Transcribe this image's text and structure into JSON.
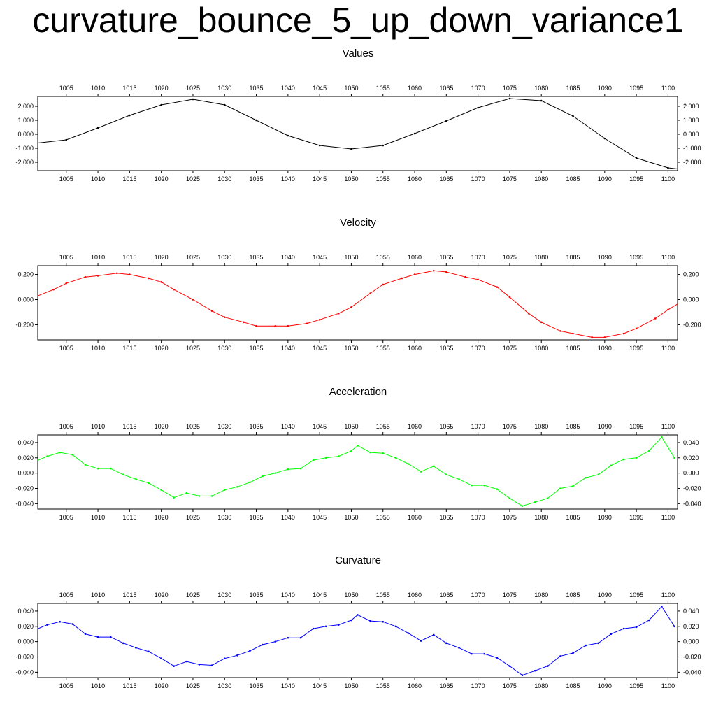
{
  "title": "curvature_bounce_5_up_down_variance1",
  "chart_data": [
    {
      "type": "line",
      "title": "Values",
      "color": "#000000",
      "x_range": [
        1000.5,
        1101.5
      ],
      "ylim": [
        -2.6,
        2.7
      ],
      "x_ticks": [
        1005,
        1010,
        1015,
        1020,
        1025,
        1030,
        1035,
        1040,
        1045,
        1050,
        1055,
        1060,
        1065,
        1070,
        1075,
        1080,
        1085,
        1090,
        1095,
        1100
      ],
      "y_ticks": [
        {
          "v": 2.0,
          "label": "2.000"
        },
        {
          "v": 1.0,
          "label": "1.000"
        },
        {
          "v": 0.0,
          "label": "0.000"
        },
        {
          "v": -1.0,
          "label": "-1.000"
        },
        {
          "v": -2.0,
          "label": "-2.000"
        }
      ],
      "x": [
        1000,
        1005,
        1010,
        1015,
        1020,
        1025,
        1030,
        1035,
        1040,
        1045,
        1050,
        1055,
        1060,
        1065,
        1070,
        1075,
        1080,
        1085,
        1090,
        1095,
        1100,
        1102
      ],
      "values": [
        -0.65,
        -0.4,
        0.45,
        1.35,
        2.1,
        2.5,
        2.1,
        1.0,
        -0.1,
        -0.8,
        -1.05,
        -0.8,
        0.05,
        0.95,
        1.9,
        2.55,
        2.4,
        1.3,
        -0.3,
        -1.7,
        -2.4,
        -2.5
      ]
    },
    {
      "type": "line",
      "title": "Velocity",
      "color": "#ff0000",
      "x_range": [
        1000.5,
        1101.5
      ],
      "ylim": [
        -0.32,
        0.27
      ],
      "x_ticks": [
        1005,
        1010,
        1015,
        1020,
        1025,
        1030,
        1035,
        1040,
        1045,
        1050,
        1055,
        1060,
        1065,
        1070,
        1075,
        1080,
        1085,
        1090,
        1095,
        1100
      ],
      "y_ticks": [
        {
          "v": 0.2,
          "label": "0.200"
        },
        {
          "v": 0.0,
          "label": "0.000"
        },
        {
          "v": -0.2,
          "label": "-0.200"
        }
      ],
      "x": [
        1000,
        1003,
        1005,
        1008,
        1010,
        1013,
        1015,
        1018,
        1020,
        1022,
        1025,
        1028,
        1030,
        1033,
        1035,
        1038,
        1040,
        1043,
        1045,
        1048,
        1050,
        1053,
        1055,
        1058,
        1060,
        1063,
        1065,
        1068,
        1070,
        1073,
        1075,
        1078,
        1080,
        1083,
        1085,
        1088,
        1090,
        1093,
        1095,
        1098,
        1100,
        1102
      ],
      "values": [
        0.02,
        0.08,
        0.13,
        0.18,
        0.19,
        0.21,
        0.2,
        0.17,
        0.14,
        0.08,
        0.0,
        -0.09,
        -0.14,
        -0.18,
        -0.21,
        -0.21,
        -0.21,
        -0.19,
        -0.16,
        -0.11,
        -0.06,
        0.05,
        0.12,
        0.17,
        0.2,
        0.23,
        0.22,
        0.18,
        0.16,
        0.1,
        0.02,
        -0.11,
        -0.18,
        -0.25,
        -0.27,
        -0.3,
        -0.3,
        -0.27,
        -0.23,
        -0.15,
        -0.08,
        -0.02
      ]
    },
    {
      "type": "line",
      "title": "Acceleration",
      "color": "#00ff00",
      "x_range": [
        1000.5,
        1101.5
      ],
      "ylim": [
        -0.047,
        0.05
      ],
      "x_ticks": [
        1005,
        1010,
        1015,
        1020,
        1025,
        1030,
        1035,
        1040,
        1045,
        1050,
        1055,
        1060,
        1065,
        1070,
        1075,
        1080,
        1085,
        1090,
        1095,
        1100
      ],
      "y_ticks": [
        {
          "v": 0.04,
          "label": "0.040"
        },
        {
          "v": 0.02,
          "label": "0.020"
        },
        {
          "v": 0.0,
          "label": "0.000"
        },
        {
          "v": -0.02,
          "label": "-0.020"
        },
        {
          "v": -0.04,
          "label": "-0.040"
        }
      ],
      "x": [
        1000,
        1002,
        1004,
        1006,
        1008,
        1010,
        1012,
        1014,
        1016,
        1018,
        1020,
        1022,
        1024,
        1026,
        1028,
        1030,
        1032,
        1034,
        1036,
        1038,
        1040,
        1042,
        1044,
        1046,
        1048,
        1050,
        1051,
        1053,
        1055,
        1057,
        1059,
        1061,
        1063,
        1065,
        1067,
        1069,
        1071,
        1073,
        1075,
        1077,
        1079,
        1081,
        1083,
        1085,
        1087,
        1089,
        1091,
        1093,
        1095,
        1097,
        1099,
        1101
      ],
      "values": [
        0.015,
        0.022,
        0.027,
        0.024,
        0.011,
        0.006,
        0.006,
        -0.002,
        -0.008,
        -0.013,
        -0.022,
        -0.032,
        -0.026,
        -0.03,
        -0.03,
        -0.022,
        -0.018,
        -0.012,
        -0.004,
        0.0,
        0.005,
        0.006,
        0.017,
        0.02,
        0.022,
        0.029,
        0.036,
        0.027,
        0.026,
        0.02,
        0.012,
        0.002,
        0.009,
        -0.002,
        -0.008,
        -0.016,
        -0.016,
        -0.021,
        -0.033,
        -0.043,
        -0.038,
        -0.033,
        -0.02,
        -0.017,
        -0.006,
        -0.002,
        0.01,
        0.018,
        0.02,
        0.029,
        0.047,
        0.02
      ]
    },
    {
      "type": "line",
      "title": "Curvature",
      "color": "#0000ff",
      "x_range": [
        1000.5,
        1101.5
      ],
      "ylim": [
        -0.047,
        0.05
      ],
      "x_ticks": [
        1005,
        1010,
        1015,
        1020,
        1025,
        1030,
        1035,
        1040,
        1045,
        1050,
        1055,
        1060,
        1065,
        1070,
        1075,
        1080,
        1085,
        1090,
        1095,
        1100
      ],
      "y_ticks": [
        {
          "v": 0.04,
          "label": "0.040"
        },
        {
          "v": 0.02,
          "label": "0.020"
        },
        {
          "v": 0.0,
          "label": "0.000"
        },
        {
          "v": -0.02,
          "label": "-0.020"
        },
        {
          "v": -0.04,
          "label": "-0.040"
        }
      ],
      "x": [
        1000,
        1002,
        1004,
        1006,
        1008,
        1010,
        1012,
        1014,
        1016,
        1018,
        1020,
        1022,
        1024,
        1026,
        1028,
        1030,
        1032,
        1034,
        1036,
        1038,
        1040,
        1042,
        1044,
        1046,
        1048,
        1050,
        1051,
        1053,
        1055,
        1057,
        1059,
        1061,
        1063,
        1065,
        1067,
        1069,
        1071,
        1073,
        1075,
        1077,
        1079,
        1081,
        1083,
        1085,
        1087,
        1089,
        1091,
        1093,
        1095,
        1097,
        1099,
        1101
      ],
      "values": [
        0.015,
        0.022,
        0.026,
        0.023,
        0.01,
        0.006,
        0.006,
        -0.002,
        -0.008,
        -0.013,
        -0.022,
        -0.032,
        -0.026,
        -0.03,
        -0.031,
        -0.022,
        -0.018,
        -0.012,
        -0.004,
        0.0,
        0.005,
        0.005,
        0.017,
        0.02,
        0.022,
        0.028,
        0.035,
        0.027,
        0.026,
        0.02,
        0.011,
        0.001,
        0.009,
        -0.002,
        -0.008,
        -0.016,
        -0.016,
        -0.021,
        -0.032,
        -0.044,
        -0.038,
        -0.032,
        -0.019,
        -0.015,
        -0.005,
        -0.002,
        0.01,
        0.017,
        0.019,
        0.028,
        0.046,
        0.02
      ]
    }
  ]
}
